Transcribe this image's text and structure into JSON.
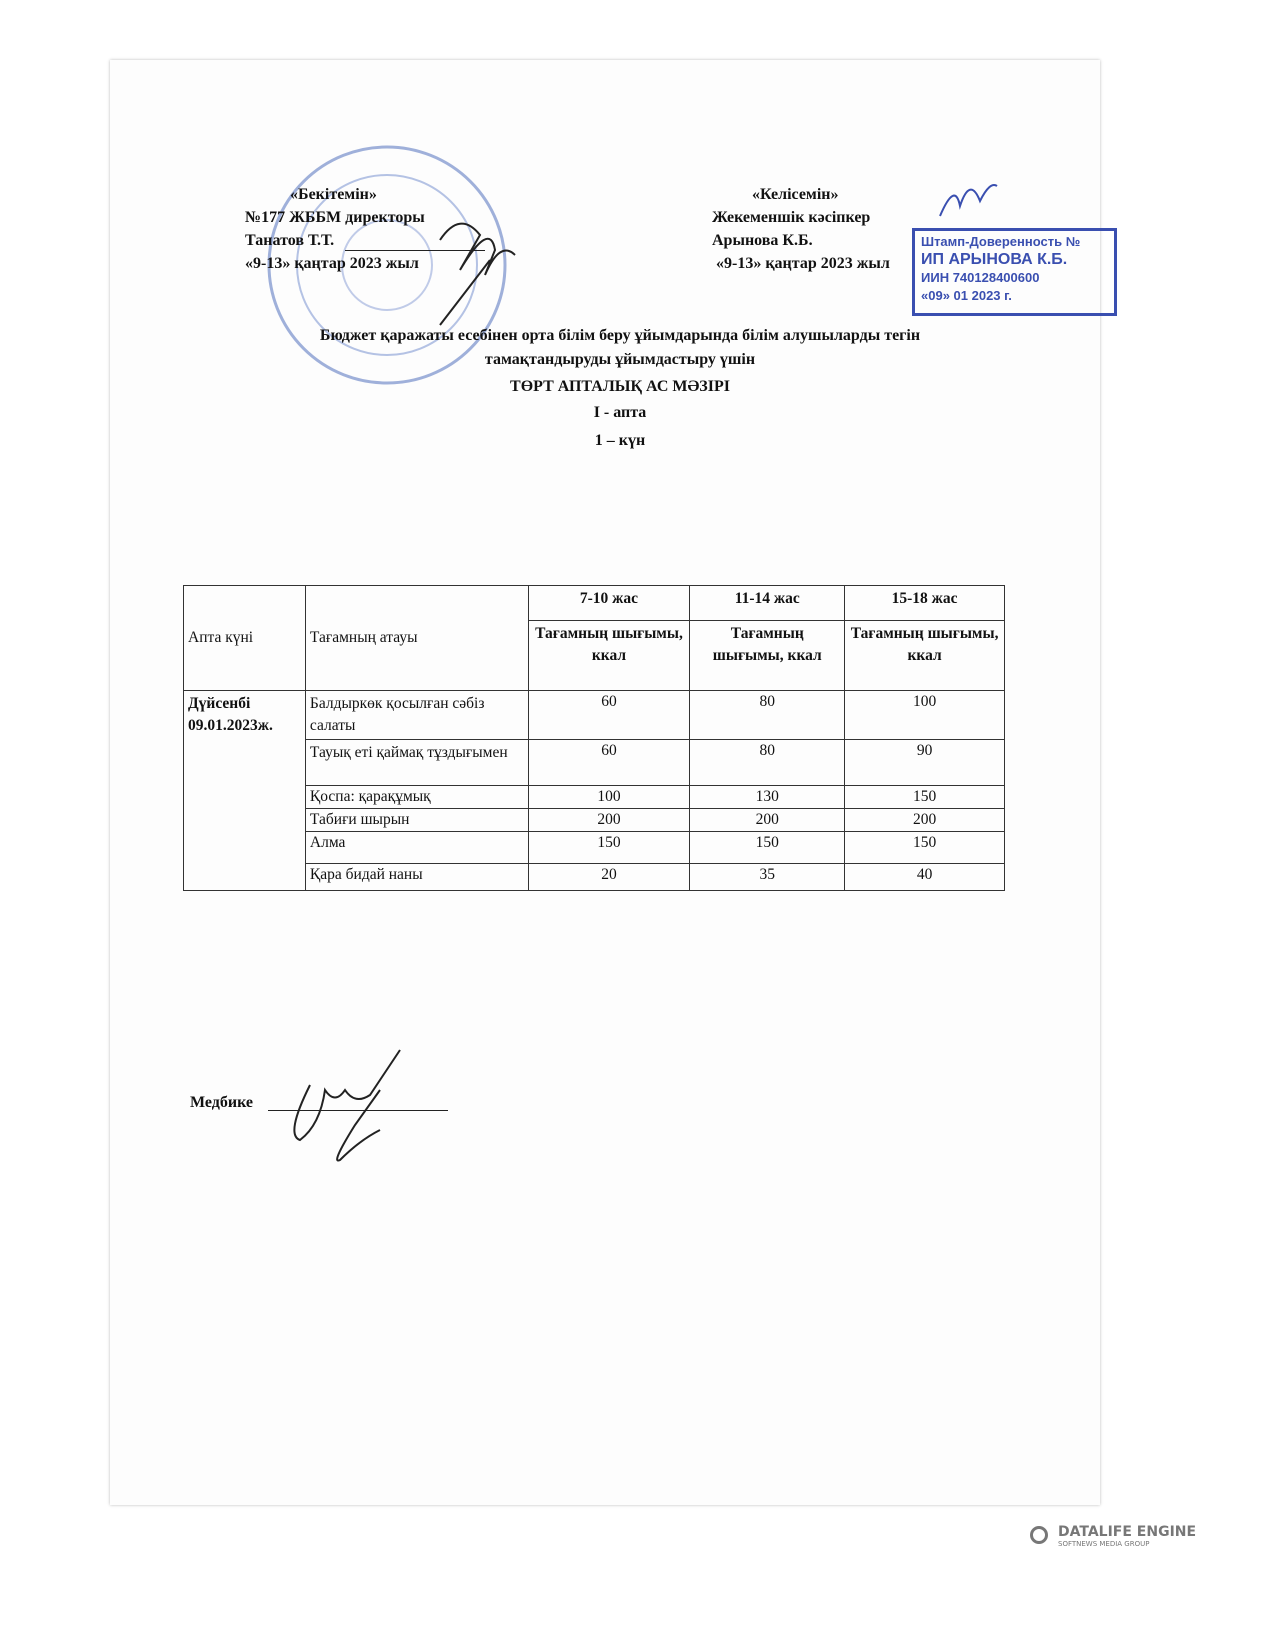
{
  "approval_left": {
    "label": "«Бекітемін»",
    "position": "№177 ЖББМ директоры",
    "name": "Танатов Т.Т.",
    "date": "«9-13» қаңтар 2023 жыл"
  },
  "approval_right": {
    "label": "«Келісемін»",
    "position": "Жекеменшік кәсіпкер",
    "name": "Арынова К.Б.",
    "date": "«9-13» қаңтар 2023 жыл"
  },
  "stamp_right": {
    "line1": "Штамп-Доверенность №",
    "line2": "ИП АРЫНОВА К.Б.",
    "line3": "ИИН 740128400600",
    "line4": "«09» 01 2023 г."
  },
  "title": {
    "line1": "Бюджет қаражаты есебінен орта білім беру ұйымдарында білім алушыларды тегін",
    "line2": "тамақтандыруды ұйымдастыру үшін",
    "line3": "ТӨРТ АПТАЛЫҚ АС МӘЗІРІ",
    "week": "I - апта",
    "day": "1 – күн"
  },
  "table": {
    "headers": {
      "day": "Апта күні",
      "dish": "Тағамның атауы",
      "ages": [
        "7-10 жас",
        "11-14 жас",
        "15-18 жас"
      ],
      "sub": "Тағамның шығымы, ккал"
    },
    "day_label": "Дүйсенбі",
    "day_date": "09.01.2023ж.",
    "rows": [
      {
        "dish": "Балдыркөк қосылған сәбіз салаты",
        "v": [
          "60",
          "80",
          "100"
        ]
      },
      {
        "dish": "Тауық еті қаймақ тұздығымен",
        "v": [
          "60",
          "80",
          "90"
        ]
      },
      {
        "dish": "Қоспа: қарақұмық",
        "v": [
          "100",
          "130",
          "150"
        ]
      },
      {
        "dish": "Табиғи шырын",
        "v": [
          "200",
          "200",
          "200"
        ]
      },
      {
        "dish": "Алма",
        "v": [
          "150",
          "150",
          "150"
        ]
      },
      {
        "dish": "Қара бидай наны",
        "v": [
          "20",
          "35",
          "40"
        ]
      }
    ]
  },
  "footer": {
    "nurse": "Медбике"
  },
  "watermark": {
    "brand": "DATALIFE ENGINE",
    "sub": "SOFTNEWS MEDIA GROUP"
  },
  "colors": {
    "stamp_blue": "#3a4fb0",
    "seal_blue": "#8a9fd0"
  }
}
